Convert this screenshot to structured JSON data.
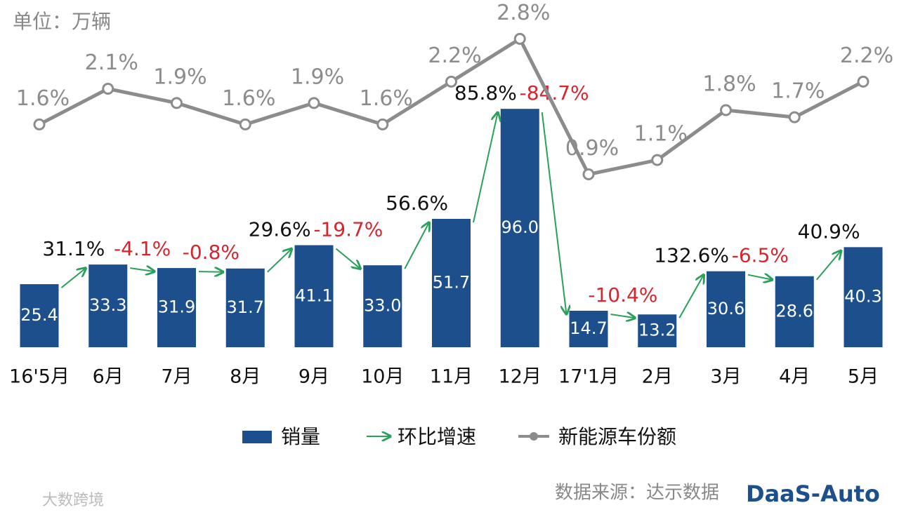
{
  "chart_data": {
    "type": "bar",
    "unit": "单位：万辆",
    "categories": [
      "16'5月",
      "6月",
      "7月",
      "8月",
      "9月",
      "10月",
      "11月",
      "12月",
      "17'1月",
      "2月",
      "3月",
      "4月",
      "5月"
    ],
    "ylim": [
      0,
      100
    ],
    "y2lim": [
      0,
      3
    ],
    "series": [
      {
        "name": "销量",
        "color": "#1c4f8c",
        "values": [
          25.4,
          33.3,
          31.9,
          31.7,
          41.1,
          33.0,
          51.7,
          96.0,
          14.7,
          13.2,
          30.6,
          28.6,
          40.3
        ],
        "value_labels": [
          "25.4",
          "33.3",
          "31.9",
          "31.7",
          "41.1",
          "33.0",
          "51.7",
          "96.0",
          "14.7",
          "13.2",
          "30.6",
          "28.6",
          "40.3"
        ]
      },
      {
        "name": "环比增速",
        "color": "#2aa05a",
        "negative_color": "#d9232d",
        "values": [
          null,
          31.1,
          -4.1,
          -0.8,
          29.6,
          -19.7,
          56.6,
          85.8,
          -84.7,
          -10.4,
          132.6,
          -6.5,
          40.9
        ],
        "value_labels": [
          null,
          "31.1%",
          "-4.1%",
          "-0.8%",
          "29.6%",
          "-19.7%",
          "56.6%",
          "85.8%",
          "-84.7%",
          "-10.4%",
          "132.6%",
          "-6.5%",
          "40.9%"
        ]
      },
      {
        "name": "新能源车份额",
        "color": "#8c8c8c",
        "axis": "y2",
        "values": [
          1.6,
          2.1,
          1.9,
          1.6,
          1.9,
          1.6,
          2.2,
          2.8,
          0.9,
          1.1,
          1.8,
          1.7,
          2.2
        ],
        "value_labels": [
          "1.6%",
          "2.1%",
          "1.9%",
          "1.6%",
          "1.9%",
          "1.6%",
          "2.2%",
          "2.8%",
          "0.9%",
          "1.1%",
          "1.8%",
          "1.7%",
          "2.2%"
        ]
      }
    ],
    "source": "数据来源：达示数据",
    "logo": "DaaS-Auto",
    "watermark": "大数跨境"
  }
}
